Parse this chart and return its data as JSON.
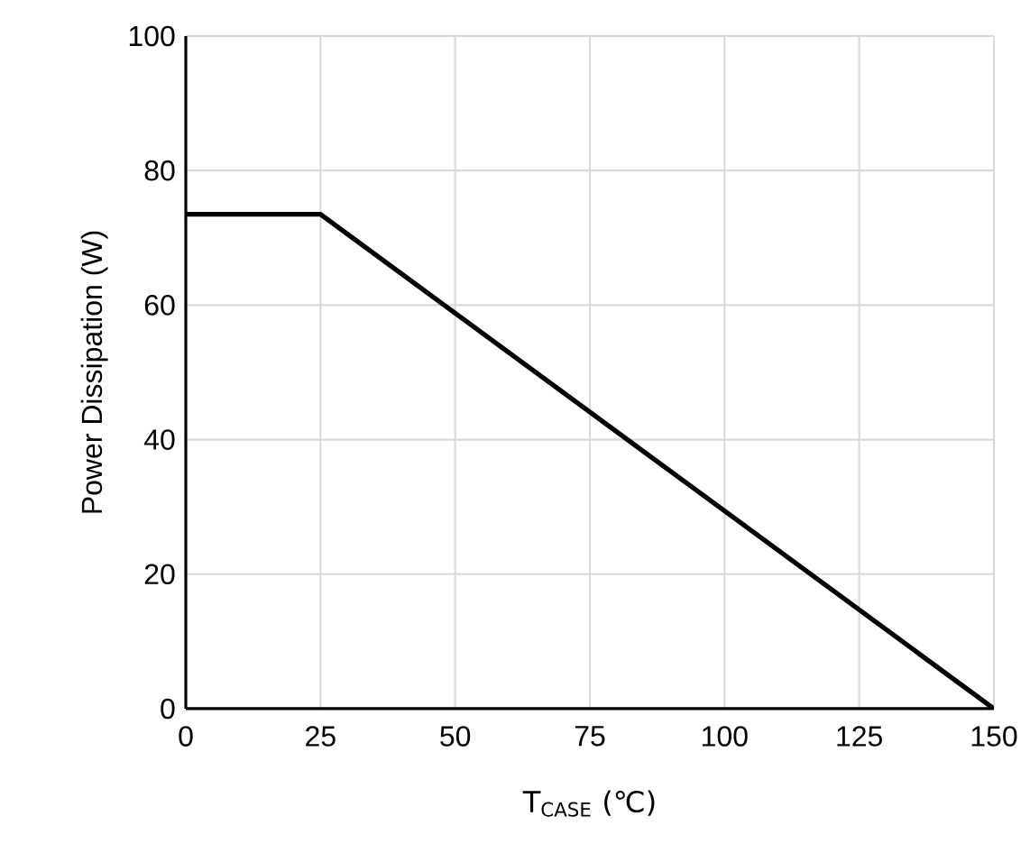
{
  "chart_data": {
    "type": "line",
    "xlabel": "T$_{CASE}$ (℃)",
    "ylabel": "Power Dissipation (W)",
    "series": [
      {
        "color": "#000000",
        "x": [
          0,
          25,
          150
        ],
        "values": [
          73.5,
          73.5,
          0
        ]
      }
    ],
    "xlim": [
      0,
      150
    ],
    "ylim": [
      0,
      100
    ],
    "xticks": [
      0,
      25,
      50,
      75,
      100,
      125,
      150
    ],
    "yticks": [
      0,
      20,
      40,
      60,
      80,
      100
    ],
    "grid": true,
    "marker": "none",
    "line_style": "solid"
  }
}
